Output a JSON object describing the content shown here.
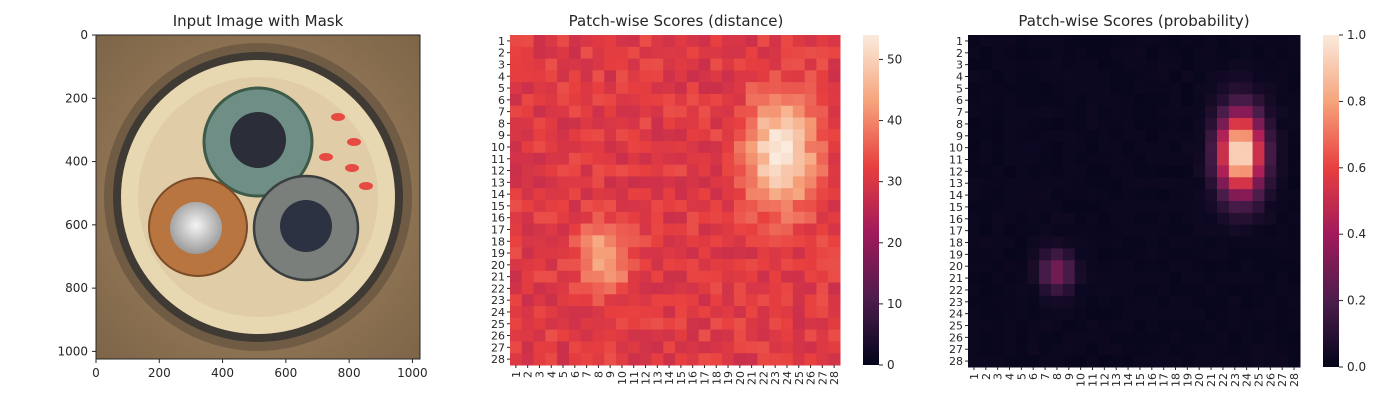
{
  "chart_data": [
    {
      "type": "image",
      "title": "Input Image with Mask",
      "xlim": [
        0,
        1024
      ],
      "ylim": [
        1024,
        0
      ],
      "x_ticks": [
        "0",
        "200",
        "400",
        "600",
        "800",
        "1000"
      ],
      "y_ticks": [
        "0",
        "200",
        "400",
        "600",
        "800",
        "1000"
      ],
      "content": "cable cross-section: three insulated conductors (green, brown, blue-grey) inside a beige jacket; red mask marks on the right side"
    },
    {
      "type": "heatmap",
      "title": "Patch-wise Scores (distance)",
      "rows": [
        "1",
        "2",
        "3",
        "4",
        "5",
        "6",
        "7",
        "8",
        "9",
        "10",
        "11",
        "12",
        "13",
        "14",
        "15",
        "16",
        "17",
        "18",
        "19",
        "20",
        "21",
        "22",
        "23",
        "24",
        "25",
        "26",
        "27",
        "28"
      ],
      "cols": [
        "1",
        "2",
        "3",
        "4",
        "5",
        "6",
        "7",
        "8",
        "9",
        "10",
        "11",
        "12",
        "13",
        "14",
        "15",
        "16",
        "17",
        "18",
        "19",
        "20",
        "21",
        "22",
        "23",
        "24",
        "25",
        "26",
        "27",
        "28"
      ],
      "colorbar": {
        "min": 0,
        "max": 54,
        "ticks": [
          "0",
          "10",
          "20",
          "30",
          "40",
          "50"
        ]
      },
      "background": 31,
      "hotspots": [
        {
          "row": 10.5,
          "col": 23.5,
          "value": 54,
          "sr": 3.2,
          "sc": 2.0
        },
        {
          "row": 19.5,
          "col": 8.5,
          "value": 46,
          "sr": 1.8,
          "sc": 1.5
        }
      ]
    },
    {
      "type": "heatmap",
      "title": "Patch-wise Scores (probability)",
      "rows": [
        "1",
        "2",
        "3",
        "4",
        "5",
        "6",
        "7",
        "8",
        "9",
        "10",
        "11",
        "12",
        "13",
        "14",
        "15",
        "16",
        "17",
        "18",
        "19",
        "20",
        "21",
        "22",
        "23",
        "24",
        "25",
        "26",
        "27",
        "28"
      ],
      "cols": [
        "1",
        "2",
        "3",
        "4",
        "5",
        "6",
        "7",
        "8",
        "9",
        "10",
        "11",
        "12",
        "13",
        "14",
        "15",
        "16",
        "17",
        "18",
        "19",
        "20",
        "21",
        "22",
        "23",
        "24",
        "25",
        "26",
        "27",
        "28"
      ],
      "colorbar": {
        "min": 0.0,
        "max": 1.0,
        "ticks": [
          "0.0",
          "0.2",
          "0.4",
          "0.6",
          "0.8",
          "1.0"
        ]
      },
      "background": 0.02,
      "hotspots": [
        {
          "row": 10.5,
          "col": 23.5,
          "value": 1.0,
          "sr": 2.4,
          "sc": 1.3
        },
        {
          "row": 20.5,
          "col": 8.0,
          "value": 0.3,
          "sr": 1.2,
          "sc": 1.0
        }
      ]
    }
  ]
}
